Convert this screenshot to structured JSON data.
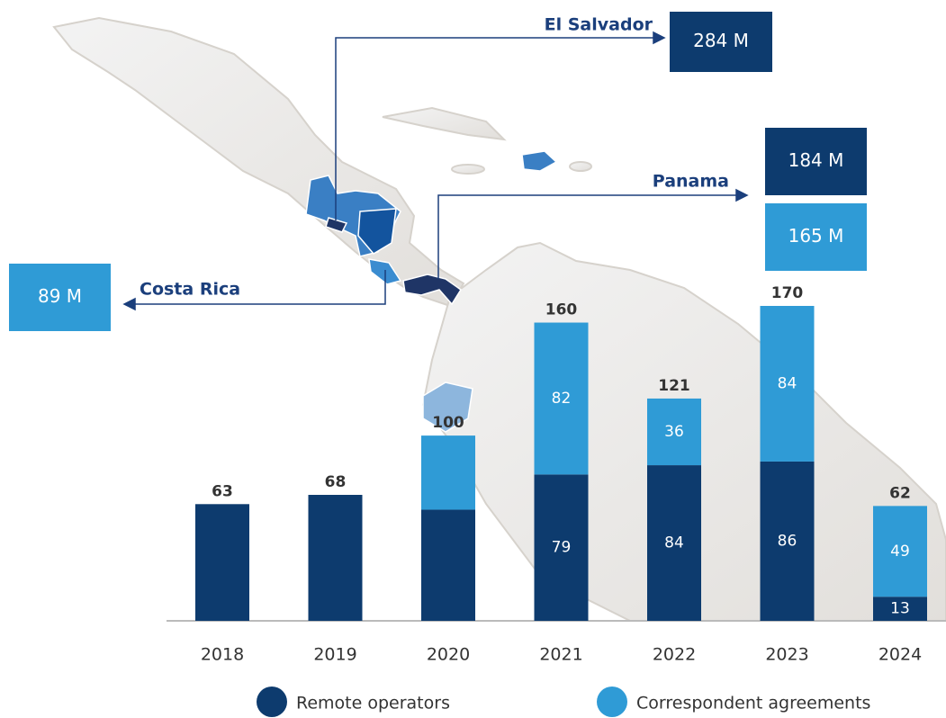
{
  "chart_data": {
    "type": "bar",
    "stacked": true,
    "categories": [
      "2018",
      "2019",
      "2020",
      "2021",
      "2022",
      "2023",
      "2024"
    ],
    "series": [
      {
        "name": "Remote operators",
        "color": "#0d3b6e",
        "values": [
          63,
          68,
          60,
          79,
          84,
          86,
          13
        ],
        "value_labels": [
          null,
          null,
          null,
          "79",
          "84",
          "86",
          "13"
        ]
      },
      {
        "name": "Correspondent agreements",
        "color": "#2f9bd6",
        "values": [
          null,
          null,
          40,
          82,
          36,
          84,
          49
        ],
        "value_labels": [
          null,
          null,
          null,
          "82",
          "36",
          "84",
          "49"
        ]
      }
    ],
    "totals": [
      63,
      68,
      100,
      160,
      121,
      170,
      62
    ],
    "ylim": [
      0,
      170
    ],
    "callouts": [
      {
        "name": "El Salvador",
        "boxes": [
          {
            "label": "284 M",
            "color": "#0d3b6e"
          }
        ]
      },
      {
        "name": "Panama",
        "boxes": [
          {
            "label": "184 M",
            "color": "#0d3b6e"
          },
          {
            "label": "165 M",
            "color": "#2f9bd6"
          }
        ]
      },
      {
        "name": "Costa Rica",
        "boxes": [
          {
            "label": "89 M",
            "color": "#2f9bd6"
          }
        ]
      }
    ]
  }
}
